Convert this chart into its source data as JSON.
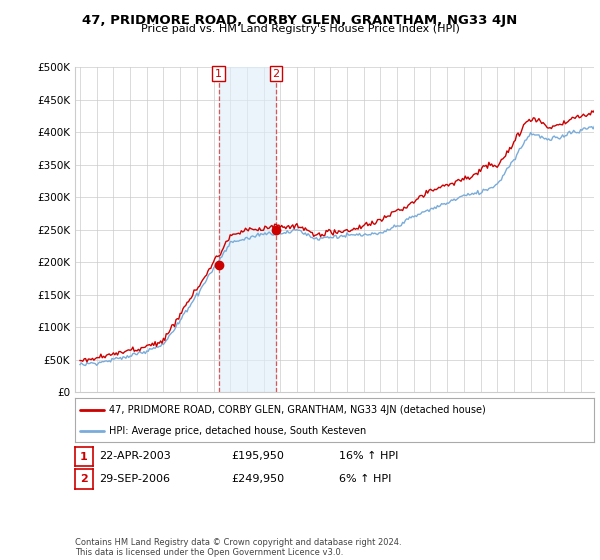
{
  "title": "47, PRIDMORE ROAD, CORBY GLEN, GRANTHAM, NG33 4JN",
  "subtitle": "Price paid vs. HM Land Registry's House Price Index (HPI)",
  "ylabel_ticks": [
    "£0",
    "£50K",
    "£100K",
    "£150K",
    "£200K",
    "£250K",
    "£300K",
    "£350K",
    "£400K",
    "£450K",
    "£500K"
  ],
  "ytick_values": [
    0,
    50000,
    100000,
    150000,
    200000,
    250000,
    300000,
    350000,
    400000,
    450000,
    500000
  ],
  "ylim": [
    0,
    500000
  ],
  "sale1_date": 2003.31,
  "sale1_label": "1",
  "sale1_price": 195950,
  "sale2_date": 2006.75,
  "sale2_label": "2",
  "sale2_price": 249950,
  "red_color": "#cc0000",
  "blue_color": "#7aacda",
  "blue_fill": "#ddeef8",
  "vline_color": "#dd4444",
  "grid_color": "#cccccc",
  "bg_color": "#ffffff",
  "legend_label_red": "47, PRIDMORE ROAD, CORBY GLEN, GRANTHAM, NG33 4JN (detached house)",
  "legend_label_blue": "HPI: Average price, detached house, South Kesteven",
  "table_row1": [
    "1",
    "22-APR-2003",
    "£195,950",
    "16% ↑ HPI"
  ],
  "table_row2": [
    "2",
    "29-SEP-2006",
    "£249,950",
    "6% ↑ HPI"
  ],
  "footer": "Contains HM Land Registry data © Crown copyright and database right 2024.\nThis data is licensed under the Open Government Licence v3.0."
}
